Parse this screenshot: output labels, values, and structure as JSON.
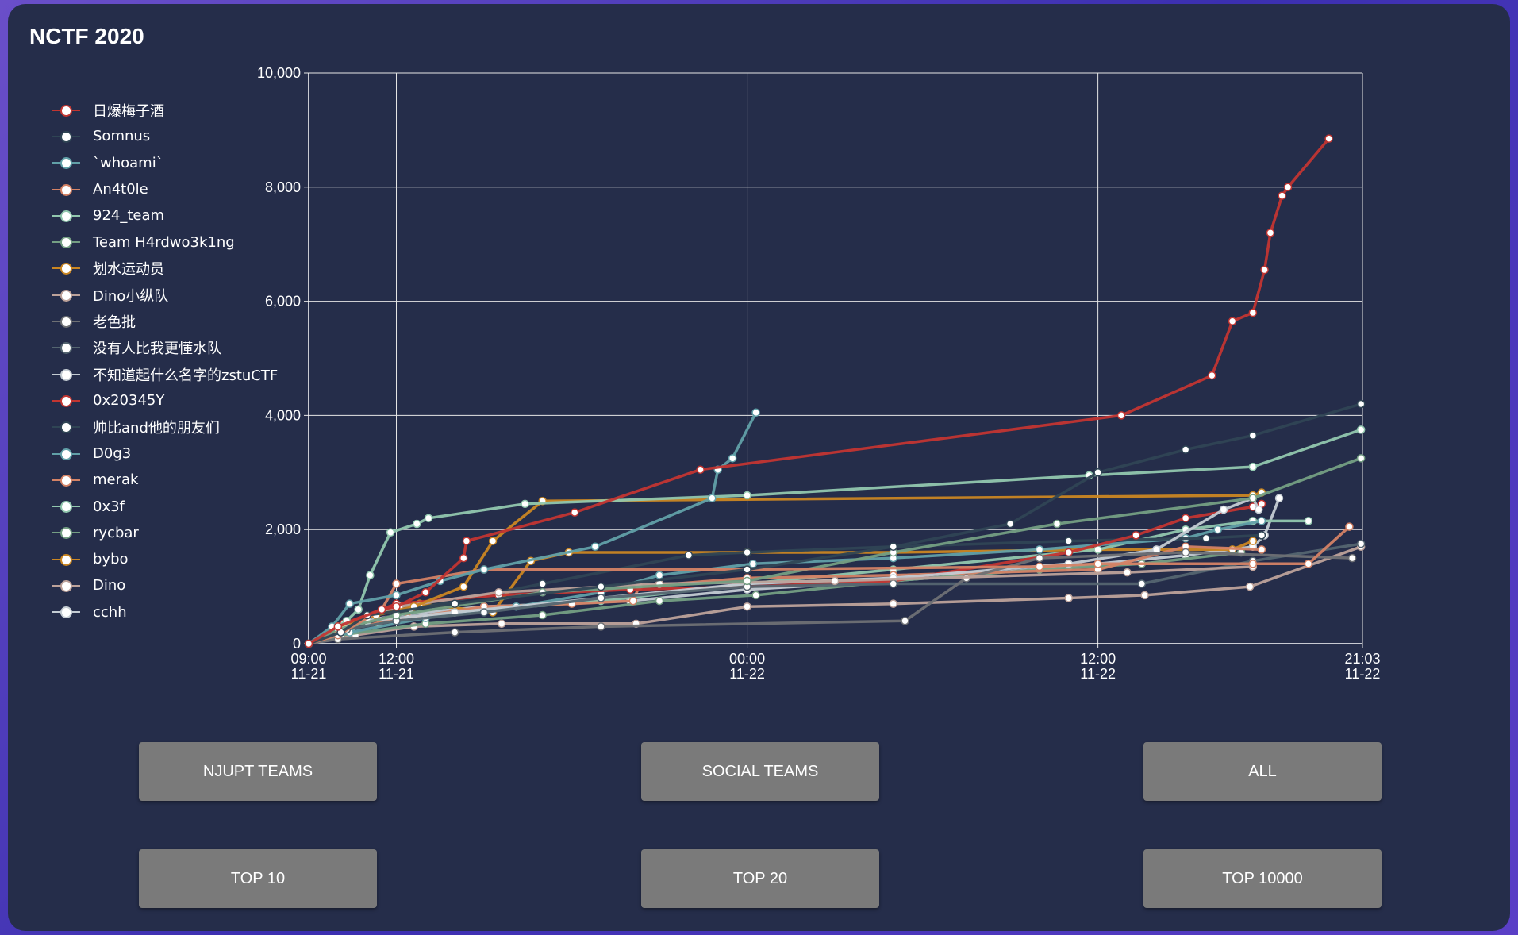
{
  "page": {
    "title": "NCTF 2020"
  },
  "buttons": [
    {
      "id": "njupt",
      "label": "NJUPT TEAMS"
    },
    {
      "id": "social",
      "label": "SOCIAL TEAMS"
    },
    {
      "id": "all",
      "label": "ALL"
    },
    {
      "id": "top10",
      "label": "TOP 10"
    },
    {
      "id": "top20",
      "label": "TOP 20"
    },
    {
      "id": "top10000",
      "label": "TOP 10000"
    }
  ],
  "chart_data": {
    "type": "line",
    "ylim": [
      0,
      10000
    ],
    "yticks": [
      0,
      2000,
      4000,
      6000,
      8000,
      10000
    ],
    "ytick_labels": [
      "0",
      "2,000",
      "4,000",
      "6,000",
      "8,000",
      "10,000"
    ],
    "xlim": [
      "11-21 09:00",
      "11-22 21:03"
    ],
    "xticks": [
      {
        "t": 0,
        "time": "09:00",
        "date": "11-21"
      },
      {
        "t": 3,
        "time": "12:00",
        "date": "11-21"
      },
      {
        "t": 15,
        "time": "00:00",
        "date": "11-22"
      },
      {
        "t": 27,
        "time": "12:00",
        "date": "11-22"
      },
      {
        "t": 36.05,
        "time": "21:03",
        "date": "11-22"
      }
    ],
    "grid": true,
    "legend_position": "left",
    "series": [
      {
        "name": "日爆梅子酒",
        "color": "#c23531",
        "points": [
          [
            0,
            0
          ],
          [
            1,
            300
          ],
          [
            2.5,
            600
          ],
          [
            3,
            650
          ],
          [
            4,
            900
          ],
          [
            5.3,
            1500
          ],
          [
            5.4,
            1800
          ],
          [
            9.1,
            2300
          ],
          [
            13.4,
            3050
          ],
          [
            27.8,
            4000
          ],
          [
            30.9,
            4700
          ],
          [
            31.6,
            5650
          ],
          [
            32.3,
            5800
          ],
          [
            32.7,
            6550
          ],
          [
            32.9,
            7200
          ],
          [
            33.3,
            7850
          ],
          [
            33.5,
            8000
          ],
          [
            34.9,
            8850
          ]
        ]
      },
      {
        "name": "Somnus",
        "color": "#2f4554",
        "points": [
          [
            0,
            0
          ],
          [
            1.1,
            200
          ],
          [
            2,
            500
          ],
          [
            5,
            700
          ],
          [
            10,
            1000
          ],
          [
            15,
            1300
          ],
          [
            20,
            1700
          ],
          [
            24,
            2100
          ],
          [
            27,
            3000
          ],
          [
            30,
            3400
          ],
          [
            32.3,
            3650
          ],
          [
            36,
            4200
          ]
        ]
      },
      {
        "name": "`whoami`",
        "color": "#61a0a8",
        "points": [
          [
            0,
            0
          ],
          [
            0.8,
            300
          ],
          [
            1.4,
            700
          ],
          [
            3,
            850
          ],
          [
            4.5,
            1100
          ],
          [
            6,
            1300
          ],
          [
            9.8,
            1700
          ],
          [
            13.8,
            2550
          ],
          [
            14,
            3050
          ],
          [
            14.5,
            3250
          ],
          [
            15.3,
            4050
          ]
        ]
      },
      {
        "name": "An4t0le",
        "color": "#d48265",
        "points": [
          [
            0,
            0
          ],
          [
            1,
            150
          ],
          [
            2.5,
            600
          ],
          [
            3,
            1050
          ],
          [
            6,
            1300
          ],
          [
            15,
            1300
          ],
          [
            25,
            1350
          ],
          [
            27,
            1400
          ],
          [
            32.3,
            1400
          ],
          [
            34.2,
            1400
          ],
          [
            35.6,
            2050
          ]
        ]
      },
      {
        "name": "924_team",
        "color": "#91c7ae",
        "points": [
          [
            0,
            0
          ],
          [
            1.3,
            400
          ],
          [
            1.7,
            600
          ],
          [
            2.1,
            1200
          ],
          [
            2.8,
            1950
          ],
          [
            3.7,
            2100
          ],
          [
            4.1,
            2200
          ],
          [
            7.4,
            2450
          ],
          [
            15,
            2600
          ],
          [
            26.7,
            2950
          ],
          [
            32.3,
            3100
          ],
          [
            36,
            3750
          ]
        ]
      },
      {
        "name": "Team H4rdwo3k1ng",
        "color": "#749f83",
        "points": [
          [
            0,
            0
          ],
          [
            1,
            250
          ],
          [
            3,
            500
          ],
          [
            8,
            900
          ],
          [
            15,
            1100
          ],
          [
            20,
            1600
          ],
          [
            25.6,
            2100
          ],
          [
            32.3,
            2550
          ],
          [
            36,
            3250
          ]
        ]
      },
      {
        "name": "划水运动员",
        "color": "#ca8622",
        "points": [
          [
            0,
            0
          ],
          [
            1,
            300
          ],
          [
            2.3,
            500
          ],
          [
            3.6,
            650
          ],
          [
            5.3,
            1000
          ],
          [
            6.3,
            1800
          ],
          [
            8,
            2500
          ],
          [
            32.3,
            2600
          ],
          [
            32.6,
            2650
          ]
        ]
      },
      {
        "name": "Dino小纵队",
        "color": "#bda29a",
        "points": [
          [
            0,
            0
          ],
          [
            1.2,
            300
          ],
          [
            3.1,
            650
          ],
          [
            6.5,
            900
          ],
          [
            12,
            1050
          ],
          [
            18,
            1100
          ],
          [
            28,
            1250
          ],
          [
            32.3,
            1350
          ]
        ]
      },
      {
        "name": "老色批",
        "color": "#6e7074",
        "points": [
          [
            0,
            0
          ],
          [
            1,
            80
          ],
          [
            5,
            200
          ],
          [
            10,
            300
          ],
          [
            20.4,
            400
          ],
          [
            22.5,
            1150
          ],
          [
            25,
            1500
          ],
          [
            30,
            1600
          ],
          [
            35.7,
            1500
          ]
        ]
      },
      {
        "name": "没有人比我更懂水队",
        "color": "#546570",
        "points": [
          [
            0,
            0
          ],
          [
            1.3,
            250
          ],
          [
            3,
            400
          ],
          [
            6,
            550
          ],
          [
            10,
            800
          ],
          [
            15,
            1000
          ],
          [
            20,
            1050
          ],
          [
            28.5,
            1050
          ],
          [
            32.3,
            1450
          ],
          [
            36,
            1750
          ]
        ]
      },
      {
        "name": "不知道起什么名字的zstuCTF",
        "color": "#c4ccd3",
        "points": [
          [
            0,
            0
          ],
          [
            1,
            200
          ],
          [
            2,
            400
          ],
          [
            5,
            550
          ],
          [
            10,
            800
          ],
          [
            15,
            1050
          ],
          [
            20,
            1150
          ],
          [
            26,
            1400
          ],
          [
            29,
            1650
          ],
          [
            31.3,
            2350
          ],
          [
            32.3,
            2550
          ],
          [
            32.5,
            2350
          ]
        ]
      },
      {
        "name": "0x20345Y",
        "color": "#c23531",
        "points": [
          [
            0,
            0
          ],
          [
            1.2,
            350
          ],
          [
            3,
            700
          ],
          [
            6.5,
            850
          ],
          [
            11,
            950
          ],
          [
            15,
            1000
          ],
          [
            20,
            1100
          ],
          [
            26,
            1600
          ],
          [
            28.3,
            1900
          ],
          [
            30,
            2200
          ],
          [
            32.3,
            2400
          ],
          [
            32.6,
            2450
          ]
        ]
      },
      {
        "name": "帅比and他的朋友们",
        "color": "#2f4554",
        "points": [
          [
            0,
            0
          ],
          [
            1,
            200
          ],
          [
            3.5,
            600
          ],
          [
            8,
            1050
          ],
          [
            13,
            1550
          ],
          [
            15,
            1600
          ],
          [
            20,
            1700
          ],
          [
            26,
            1800
          ],
          [
            30.7,
            1850
          ],
          [
            32.6,
            1900
          ]
        ]
      },
      {
        "name": "D0g3",
        "color": "#61a0a8",
        "points": [
          [
            0,
            0
          ],
          [
            1.4,
            200
          ],
          [
            4,
            450
          ],
          [
            7.1,
            650
          ],
          [
            10,
            900
          ],
          [
            12,
            1200
          ],
          [
            15.2,
            1400
          ],
          [
            20,
            1500
          ],
          [
            25,
            1650
          ],
          [
            30,
            1850
          ],
          [
            31.1,
            2000
          ],
          [
            32.6,
            2150
          ]
        ]
      },
      {
        "name": "merak",
        "color": "#d48265",
        "points": [
          [
            0,
            0
          ],
          [
            1,
            300
          ],
          [
            3.4,
            450
          ],
          [
            6,
            650
          ],
          [
            9,
            700
          ],
          [
            11.1,
            750
          ],
          [
            11.3,
            1000
          ],
          [
            15,
            1150
          ],
          [
            20,
            1200
          ],
          [
            27,
            1300
          ],
          [
            30,
            1700
          ],
          [
            32.6,
            1650
          ]
        ]
      },
      {
        "name": "0x3f",
        "color": "#91c7ae",
        "points": [
          [
            0,
            0
          ],
          [
            1.5,
            300
          ],
          [
            5,
            550
          ],
          [
            10,
            750
          ],
          [
            15,
            1050
          ],
          [
            20,
            1300
          ],
          [
            27,
            1650
          ],
          [
            30,
            2000
          ],
          [
            32.3,
            2150
          ],
          [
            34.2,
            2150
          ]
        ]
      },
      {
        "name": "rycbar",
        "color": "#749f83",
        "points": [
          [
            0,
            0
          ],
          [
            1.1,
            150
          ],
          [
            4,
            350
          ],
          [
            8,
            500
          ],
          [
            12,
            750
          ],
          [
            15.3,
            850
          ],
          [
            20,
            1100
          ],
          [
            25,
            1300
          ],
          [
            28.5,
            1400
          ],
          [
            31.9,
            1600
          ]
        ]
      },
      {
        "name": "bybo",
        "color": "#ca8622",
        "points": [
          [
            0,
            0
          ],
          [
            1.2,
            350
          ],
          [
            2.4,
            350
          ],
          [
            3.8,
            700
          ],
          [
            6.3,
            550
          ],
          [
            7.6,
            1450
          ],
          [
            8.9,
            1600
          ],
          [
            15,
            1600
          ],
          [
            20,
            1600
          ],
          [
            27,
            1650
          ],
          [
            31.6,
            1650
          ],
          [
            32.3,
            1800
          ]
        ]
      },
      {
        "name": "Dino",
        "color": "#bda29a",
        "points": [
          [
            0,
            0
          ],
          [
            1.6,
            150
          ],
          [
            3.6,
            300
          ],
          [
            6.6,
            350
          ],
          [
            11.2,
            350
          ],
          [
            15,
            650
          ],
          [
            20,
            700
          ],
          [
            26,
            800
          ],
          [
            28.6,
            850
          ],
          [
            32.2,
            1000
          ],
          [
            36,
            1700
          ]
        ]
      },
      {
        "name": "cchh",
        "color": "#c4ccd3",
        "points": [
          [
            0,
            0
          ],
          [
            1,
            300
          ],
          [
            3,
            500
          ],
          [
            6,
            650
          ],
          [
            11,
            750
          ],
          [
            15,
            950
          ],
          [
            20,
            1100
          ],
          [
            26,
            1350
          ],
          [
            30,
            1550
          ],
          [
            32.3,
            1700
          ],
          [
            32.7,
            1900
          ],
          [
            33.2,
            2550
          ]
        ]
      }
    ]
  }
}
